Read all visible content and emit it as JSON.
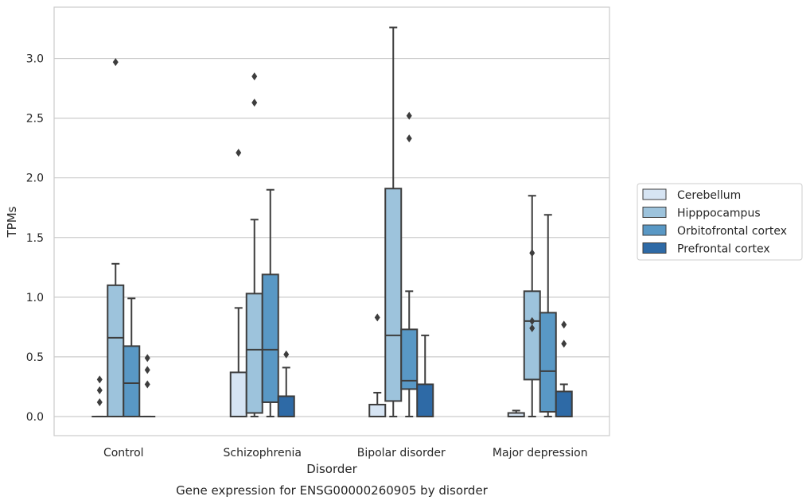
{
  "chart_data": {
    "type": "box",
    "caption": "Gene expression for ENSG00000260905 by disorder",
    "xlabel": "Disorder",
    "ylabel": "TPMs",
    "ylim": [
      -0.16,
      3.43
    ],
    "yticks": [
      "0.0",
      "0.5",
      "1.0",
      "1.5",
      "2.0",
      "2.5",
      "3.0"
    ],
    "categories": [
      "Control",
      "Schizophrenia",
      "Bipolar disorder",
      "Major depression"
    ],
    "grid": "horizontal",
    "legend_position": "right",
    "series": [
      {
        "name": "Cerebellum",
        "color": "#d6e4f3",
        "boxes": [
          {
            "q1": 0.0,
            "median": 0.0,
            "q3": 0.0,
            "whisker_low": 0.0,
            "whisker_high": 0.0,
            "outliers": [
              0.12,
              0.22,
              0.31
            ]
          },
          {
            "q1": 0.0,
            "median": 0.0,
            "q3": 0.37,
            "whisker_low": 0.0,
            "whisker_high": 0.91,
            "outliers": [
              2.21
            ]
          },
          {
            "q1": 0.0,
            "median": 0.0,
            "q3": 0.1,
            "whisker_low": 0.0,
            "whisker_high": 0.2,
            "outliers": [
              0.83
            ]
          },
          {
            "q1": 0.0,
            "median": 0.0,
            "q3": 0.03,
            "whisker_low": 0.0,
            "whisker_high": 0.05,
            "outliers": []
          }
        ]
      },
      {
        "name": "Hipppocampus",
        "color": "#9dc3dc",
        "boxes": [
          {
            "q1": 0.0,
            "median": 0.66,
            "q3": 1.1,
            "whisker_low": 0.0,
            "whisker_high": 1.28,
            "outliers": [
              2.97
            ]
          },
          {
            "q1": 0.03,
            "median": 0.56,
            "q3": 1.03,
            "whisker_low": 0.0,
            "whisker_high": 1.65,
            "outliers": [
              2.63,
              2.85
            ]
          },
          {
            "q1": 0.13,
            "median": 0.68,
            "q3": 1.91,
            "whisker_low": 0.0,
            "whisker_high": 3.26,
            "outliers": []
          },
          {
            "q1": 0.31,
            "median": 0.8,
            "q3": 1.05,
            "whisker_low": 0.0,
            "whisker_high": 1.85,
            "outliers": [
              0.74,
              0.8,
              1.37
            ]
          }
        ]
      },
      {
        "name": "Orbitofrontal cortex",
        "color": "#5998c5",
        "boxes": [
          {
            "q1": 0.0,
            "median": 0.28,
            "q3": 0.59,
            "whisker_low": 0.0,
            "whisker_high": 0.99,
            "outliers": []
          },
          {
            "q1": 0.12,
            "median": 0.56,
            "q3": 1.19,
            "whisker_low": 0.0,
            "whisker_high": 1.9,
            "outliers": []
          },
          {
            "q1": 0.23,
            "median": 0.3,
            "q3": 0.73,
            "whisker_low": 0.0,
            "whisker_high": 1.05,
            "outliers": [
              2.33,
              2.52
            ]
          },
          {
            "q1": 0.04,
            "median": 0.38,
            "q3": 0.87,
            "whisker_low": 0.0,
            "whisker_high": 1.69,
            "outliers": []
          }
        ]
      },
      {
        "name": "Prefrontal cortex",
        "color": "#2e6aa6",
        "boxes": [
          {
            "q1": 0.0,
            "median": 0.0,
            "q3": 0.0,
            "whisker_low": 0.0,
            "whisker_high": 0.0,
            "outliers": [
              0.27,
              0.39,
              0.49
            ]
          },
          {
            "q1": 0.0,
            "median": 0.0,
            "q3": 0.17,
            "whisker_low": 0.0,
            "whisker_high": 0.41,
            "outliers": [
              0.52
            ]
          },
          {
            "q1": 0.0,
            "median": 0.0,
            "q3": 0.27,
            "whisker_low": 0.0,
            "whisker_high": 0.68,
            "outliers": []
          },
          {
            "q1": 0.0,
            "median": 0.0,
            "q3": 0.21,
            "whisker_low": 0.0,
            "whisker_high": 0.27,
            "outliers": [
              0.61,
              0.77
            ]
          }
        ]
      }
    ]
  }
}
